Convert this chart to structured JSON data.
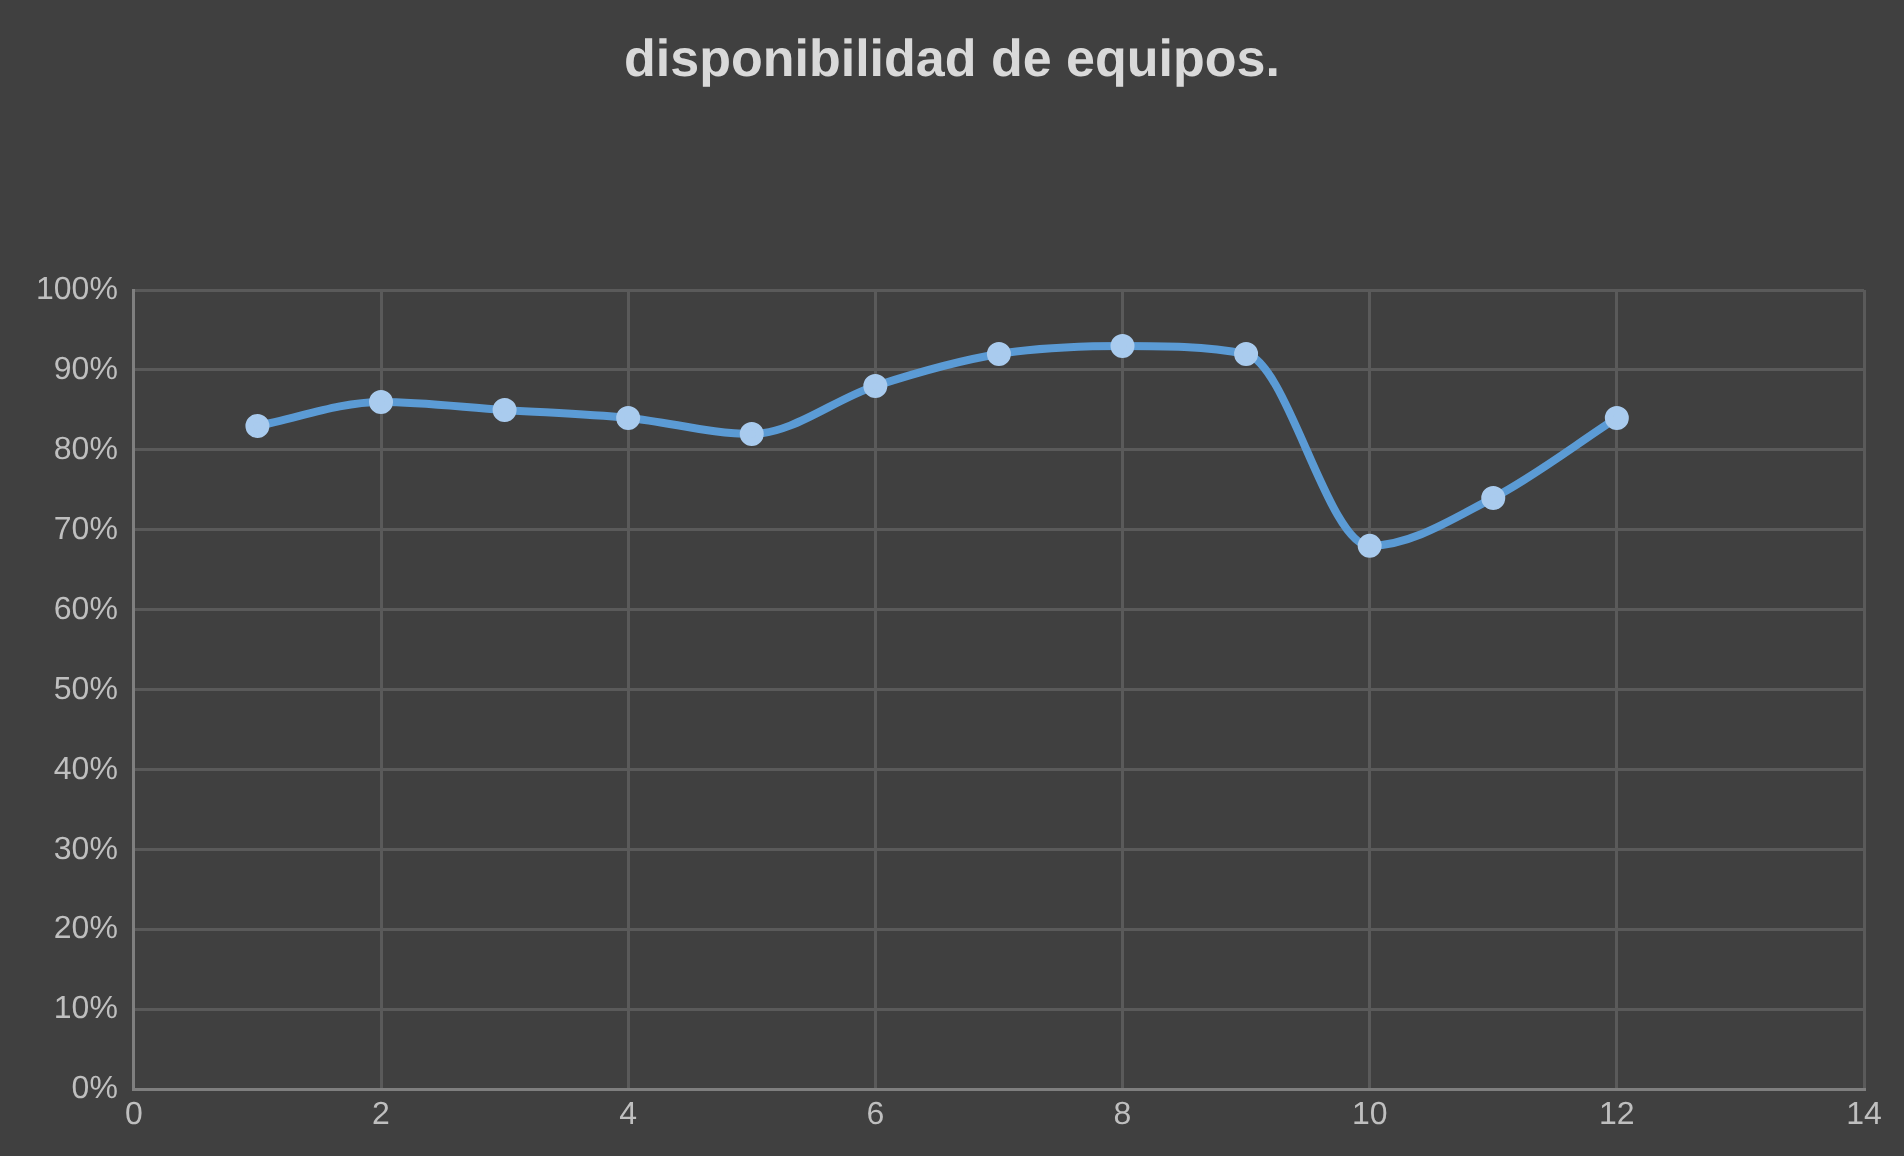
{
  "chart_data": {
    "type": "line",
    "title": "disponibilidad de equipos.",
    "x": [
      1,
      2,
      3,
      4,
      5,
      6,
      7,
      8,
      9,
      10,
      11,
      12
    ],
    "series": [
      {
        "color": "#5b9bd5",
        "values": [
          83,
          86,
          85,
          84,
          82,
          88,
          92,
          93,
          92,
          68,
          74,
          84
        ]
      }
    ],
    "xlim": [
      0,
      14
    ],
    "xticks": [
      0,
      2,
      4,
      6,
      8,
      10,
      12,
      14
    ],
    "ylim": [
      0,
      100
    ],
    "yticks": [
      {
        "value": 0,
        "label": "0%"
      },
      {
        "value": 10,
        "label": "10%"
      },
      {
        "value": 20,
        "label": "20%"
      },
      {
        "value": 30,
        "label": "30%"
      },
      {
        "value": 40,
        "label": "40%"
      },
      {
        "value": 50,
        "label": "50%"
      },
      {
        "value": 60,
        "label": "60%"
      },
      {
        "value": 70,
        "label": "70%"
      },
      {
        "value": 80,
        "label": "80%"
      },
      {
        "value": 90,
        "label": "90%"
      },
      {
        "value": 100,
        "label": "100%"
      }
    ],
    "grid": true,
    "legend": false,
    "marker": "circle",
    "line_style": "solid"
  }
}
